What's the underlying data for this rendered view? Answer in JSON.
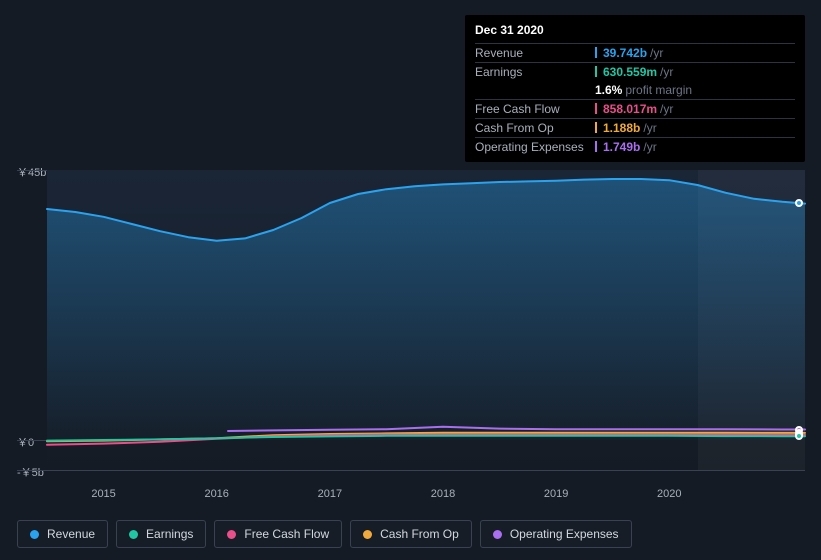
{
  "tooltip": {
    "date": "Dec 31 2020",
    "rows": [
      {
        "key": "revenue",
        "label": "Revenue",
        "value": "39.742b",
        "suffix": "/yr",
        "color": "#2aa3ef"
      },
      {
        "key": "earnings",
        "label": "Earnings",
        "value": "630.559m",
        "suffix": "/yr",
        "color": "#1fc7a5",
        "sub": {
          "percent": "1.6%",
          "label": "profit margin"
        }
      },
      {
        "key": "fcf",
        "label": "Free Cash Flow",
        "value": "858.017m",
        "suffix": "/yr",
        "color": "#e94f8a"
      },
      {
        "key": "cfo",
        "label": "Cash From Op",
        "value": "1.188b",
        "suffix": "/yr",
        "color": "#f0a93c"
      },
      {
        "key": "opex",
        "label": "Operating Expenses",
        "value": "1.749b",
        "suffix": "/yr",
        "color": "#a96ff0"
      }
    ]
  },
  "chart": {
    "type": "area-line",
    "background": "#151b24",
    "plot_gradient_top": "#1a2536",
    "plot_gradient_bottom": "#151b24",
    "grid_color": "#3a4252",
    "text_color": "#a8b0bb",
    "y": {
      "min": -5,
      "max": 45,
      "ticks": [
        {
          "v": 45,
          "label": "￥45b"
        },
        {
          "v": 0,
          "label": "￥0"
        },
        {
          "v": -5,
          "label": "-￥5b"
        }
      ]
    },
    "x": {
      "min": 2014.5,
      "max": 2021.2,
      "ticks": [
        2015,
        2016,
        2017,
        2018,
        2019,
        2020
      ],
      "future_from": 2020.25
    },
    "series": [
      {
        "key": "revenue",
        "name": "Revenue",
        "color": "#2aa3ef",
        "area": true,
        "width": 2,
        "points": [
          [
            2014.5,
            38.5
          ],
          [
            2014.75,
            38.0
          ],
          [
            2015.0,
            37.2
          ],
          [
            2015.25,
            36.0
          ],
          [
            2015.5,
            34.8
          ],
          [
            2015.75,
            33.8
          ],
          [
            2016.0,
            33.2
          ],
          [
            2016.25,
            33.6
          ],
          [
            2016.5,
            35.0
          ],
          [
            2016.75,
            37.0
          ],
          [
            2017.0,
            39.5
          ],
          [
            2017.25,
            41.0
          ],
          [
            2017.5,
            41.8
          ],
          [
            2017.75,
            42.3
          ],
          [
            2018.0,
            42.6
          ],
          [
            2018.25,
            42.8
          ],
          [
            2018.5,
            43.0
          ],
          [
            2018.75,
            43.1
          ],
          [
            2019.0,
            43.2
          ],
          [
            2019.25,
            43.4
          ],
          [
            2019.5,
            43.5
          ],
          [
            2019.75,
            43.5
          ],
          [
            2020.0,
            43.3
          ],
          [
            2020.25,
            42.5
          ],
          [
            2020.5,
            41.2
          ],
          [
            2020.75,
            40.2
          ],
          [
            2021.0,
            39.7
          ],
          [
            2021.2,
            39.4
          ]
        ]
      },
      {
        "key": "opex",
        "name": "Operating Expenses",
        "color": "#a96ff0",
        "area": false,
        "width": 2,
        "points": [
          [
            2016.1,
            1.5
          ],
          [
            2016.5,
            1.6
          ],
          [
            2017.0,
            1.7
          ],
          [
            2017.5,
            1.8
          ],
          [
            2018.0,
            2.2
          ],
          [
            2018.5,
            1.9
          ],
          [
            2019.0,
            1.8
          ],
          [
            2019.5,
            1.8
          ],
          [
            2020.0,
            1.8
          ],
          [
            2020.5,
            1.8
          ],
          [
            2021.0,
            1.75
          ],
          [
            2021.2,
            1.75
          ]
        ]
      },
      {
        "key": "cfo",
        "name": "Cash From Op",
        "color": "#f0a93c",
        "area": false,
        "width": 2,
        "points": [
          [
            2014.5,
            -0.2
          ],
          [
            2015.0,
            -0.1
          ],
          [
            2015.5,
            0.1
          ],
          [
            2016.0,
            0.3
          ],
          [
            2016.5,
            0.8
          ],
          [
            2017.0,
            1.0
          ],
          [
            2017.5,
            1.1
          ],
          [
            2018.0,
            1.2
          ],
          [
            2018.5,
            1.2
          ],
          [
            2019.0,
            1.2
          ],
          [
            2019.5,
            1.2
          ],
          [
            2020.0,
            1.2
          ],
          [
            2020.5,
            1.2
          ],
          [
            2021.0,
            1.19
          ],
          [
            2021.2,
            1.18
          ]
        ]
      },
      {
        "key": "fcf",
        "name": "Free Cash Flow",
        "color": "#e94f8a",
        "area": false,
        "width": 2,
        "points": [
          [
            2014.5,
            -0.8
          ],
          [
            2015.0,
            -0.6
          ],
          [
            2015.5,
            -0.3
          ],
          [
            2016.0,
            0.2
          ],
          [
            2016.5,
            0.6
          ],
          [
            2017.0,
            0.8
          ],
          [
            2017.5,
            0.9
          ],
          [
            2018.0,
            0.9
          ],
          [
            2018.5,
            0.9
          ],
          [
            2019.0,
            0.9
          ],
          [
            2019.5,
            0.9
          ],
          [
            2020.0,
            0.9
          ],
          [
            2020.5,
            0.9
          ],
          [
            2021.0,
            0.86
          ],
          [
            2021.2,
            0.85
          ]
        ]
      },
      {
        "key": "earnings",
        "name": "Earnings",
        "color": "#1fc7a5",
        "area": false,
        "width": 2,
        "points": [
          [
            2014.5,
            -0.1
          ],
          [
            2015.0,
            0.0
          ],
          [
            2015.5,
            0.1
          ],
          [
            2016.0,
            0.3
          ],
          [
            2016.5,
            0.5
          ],
          [
            2017.0,
            0.6
          ],
          [
            2017.5,
            0.7
          ],
          [
            2018.0,
            0.7
          ],
          [
            2018.5,
            0.7
          ],
          [
            2019.0,
            0.7
          ],
          [
            2019.5,
            0.7
          ],
          [
            2020.0,
            0.7
          ],
          [
            2020.5,
            0.65
          ],
          [
            2021.0,
            0.63
          ],
          [
            2021.2,
            0.62
          ]
        ]
      }
    ],
    "cursor_x": 2021.15
  },
  "legend": [
    {
      "key": "revenue",
      "label": "Revenue",
      "color": "#2aa3ef"
    },
    {
      "key": "earnings",
      "label": "Earnings",
      "color": "#1fc7a5"
    },
    {
      "key": "fcf",
      "label": "Free Cash Flow",
      "color": "#e94f8a"
    },
    {
      "key": "cfo",
      "label": "Cash From Op",
      "color": "#f0a93c"
    },
    {
      "key": "opex",
      "label": "Operating Expenses",
      "color": "#a96ff0"
    }
  ]
}
